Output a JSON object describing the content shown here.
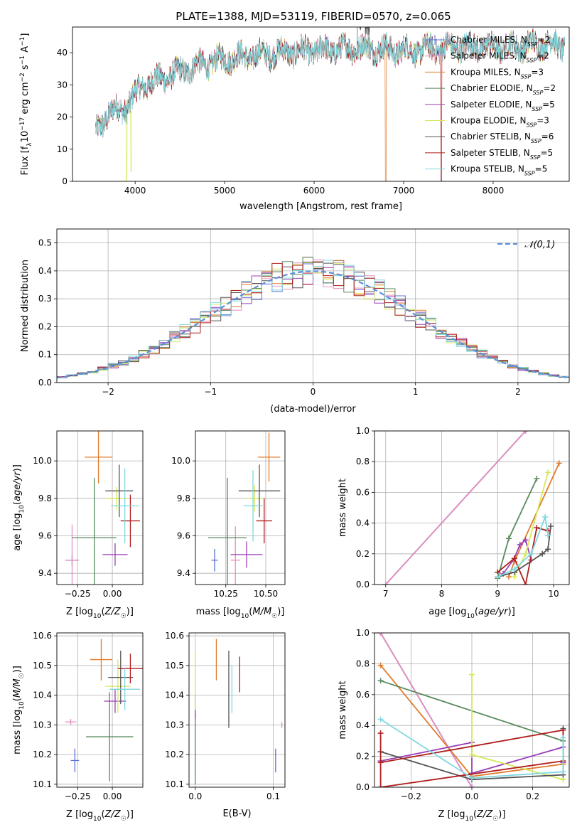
{
  "figure": {
    "title": "PLATE=1388, MJD=53119, FIBERID=0570, z=0.065"
  },
  "chart_data": [
    {
      "id": "spectrum",
      "type": "line",
      "title": "PLATE=1388, MJD=53119, FIBERID=0570, z=0.065",
      "xlabel": "wavelength [Angstrom, rest frame]",
      "ylabel": "Flux [f_λ 10^-17 erg cm^-2 s^-1 A^-1]",
      "xlim": [
        3300,
        8850
      ],
      "ylim": [
        0,
        48
      ],
      "xticks": [
        4000,
        5000,
        6000,
        7000,
        8000
      ],
      "yticks": [
        0,
        10,
        20,
        30,
        40
      ],
      "grid": false,
      "legend": "top-right",
      "continuum": {
        "x": [
          3550,
          3700,
          3900,
          4000,
          4100,
          4300,
          4500,
          4700,
          5000,
          5300,
          5600,
          5900,
          6200,
          6500,
          6800,
          7100,
          7400,
          7700,
          8000,
          8300,
          8600,
          8800
        ],
        "y": [
          15,
          21,
          23,
          27,
          30,
          32,
          34,
          36,
          38,
          39,
          40,
          40.5,
          41,
          41.5,
          41,
          40.5,
          41.5,
          42,
          41.5,
          42,
          43,
          42
        ]
      },
      "series": [
        {
          "name": "Chabrier MILES, N_SSP=2",
          "color": "#5b6fd6"
        },
        {
          "name": "Salpeter MILES, N_SSP=2",
          "color": "#e48fbd"
        },
        {
          "name": "Kroupa MILES, N_SSP=3",
          "color": "#e07b2a"
        },
        {
          "name": "Chabrier ELODIE, N_SSP=2",
          "color": "#5a8a5e"
        },
        {
          "name": "Salpeter ELODIE, N_SSP=5",
          "color": "#9a3fb8"
        },
        {
          "name": "Kroupa ELODIE, N_SSP=3",
          "color": "#d6e85a"
        },
        {
          "name": "Chabrier STELIB, N_SSP=6",
          "color": "#555555"
        },
        {
          "name": "Salpeter STELIB, N_SSP=5",
          "color": "#b01e1e"
        },
        {
          "name": "Kroupa STELIB, N_SSP=5",
          "color": "#7fd8df"
        }
      ]
    },
    {
      "id": "residuals",
      "type": "histogram",
      "xlabel": "(data-model)/error",
      "ylabel": "Normed distribution",
      "xlim": [
        -2.5,
        2.5
      ],
      "ylim": [
        0,
        0.55
      ],
      "xticks": [
        -2,
        -1,
        0,
        1,
        2
      ],
      "yticks": [
        0.0,
        0.1,
        0.2,
        0.3,
        0.4,
        0.5
      ],
      "grid": true,
      "legend": "top-right",
      "reference": {
        "name": "𝒩(0,1)",
        "color": "#5b8fd8"
      }
    },
    {
      "id": "age-vs-Z",
      "type": "scatter",
      "xlabel": "Z [log10(Z/Z☉)]",
      "ylabel": "age [log10(age/yr)]",
      "xlim": [
        -0.4,
        0.22
      ],
      "ylim": [
        9.34,
        10.16
      ],
      "xticks": [
        -0.25,
        0.0
      ],
      "yticks": [
        9.4,
        9.6,
        9.8,
        10.0
      ],
      "grid": true,
      "points": [
        {
          "x": -0.29,
          "y": 9.47,
          "xerr": 0.04,
          "yerr": 0.03,
          "color": "#5b6fd6"
        },
        {
          "x": -0.29,
          "y": 9.47,
          "xerr": 0.05,
          "yerr": 0.19,
          "color": "#e48fbd"
        },
        {
          "x": -0.1,
          "y": 10.02,
          "xerr": 0.1,
          "yerr": 0.14,
          "color": "#e07b2a"
        },
        {
          "x": -0.13,
          "y": 9.59,
          "xerr": 0.16,
          "yerr": 0.32,
          "color": "#5a8a5e"
        },
        {
          "x": 0.02,
          "y": 9.5,
          "xerr": 0.09,
          "yerr": 0.06,
          "color": "#9a3fb8"
        },
        {
          "x": 0.03,
          "y": 9.8,
          "xerr": 0.08,
          "yerr": 0.06,
          "color": "#d6e85a"
        },
        {
          "x": 0.05,
          "y": 9.84,
          "xerr": 0.1,
          "yerr": 0.14,
          "color": "#555555"
        },
        {
          "x": 0.13,
          "y": 9.68,
          "xerr": 0.07,
          "yerr": 0.14,
          "color": "#b01e1e"
        },
        {
          "x": 0.09,
          "y": 9.76,
          "xerr": 0.1,
          "yerr": 0.2,
          "color": "#7fd8df"
        }
      ]
    },
    {
      "id": "age-vs-mass",
      "type": "scatter",
      "xlabel": "mass [log10(M/M☉)]",
      "ylabel": "",
      "xlim": [
        10.06,
        10.62
      ],
      "ylim": [
        9.34,
        10.16
      ],
      "xticks": [
        10.25,
        10.5
      ],
      "yticks": [
        9.4,
        9.6,
        9.8,
        10.0
      ],
      "grid": true,
      "points": [
        {
          "x": 10.18,
          "y": 9.47,
          "xerr": 0.02,
          "yerr": 0.06,
          "color": "#5b6fd6"
        },
        {
          "x": 10.31,
          "y": 9.47,
          "xerr": 0.03,
          "yerr": 0.18,
          "color": "#e48fbd"
        },
        {
          "x": 10.52,
          "y": 10.02,
          "xerr": 0.07,
          "yerr": 0.13,
          "color": "#e07b2a"
        },
        {
          "x": 10.26,
          "y": 9.59,
          "xerr": 0.12,
          "yerr": 0.32,
          "color": "#5a8a5e"
        },
        {
          "x": 10.38,
          "y": 9.5,
          "xerr": 0.1,
          "yerr": 0.07,
          "color": "#9a3fb8"
        },
        {
          "x": 10.43,
          "y": 9.8,
          "xerr": 0.05,
          "yerr": 0.07,
          "color": "#d6e85a"
        },
        {
          "x": 10.46,
          "y": 9.84,
          "xerr": 0.13,
          "yerr": 0.14,
          "color": "#555555"
        },
        {
          "x": 10.49,
          "y": 9.68,
          "xerr": 0.05,
          "yerr": 0.12,
          "color": "#b01e1e"
        },
        {
          "x": 10.42,
          "y": 9.76,
          "xerr": 0.06,
          "yerr": 0.19,
          "color": "#7fd8df"
        }
      ]
    },
    {
      "id": "weight-vs-age",
      "type": "line",
      "xlabel": "age [log10(age/yr)]",
      "ylabel": "mass weight",
      "xlim": [
        6.8,
        10.28
      ],
      "ylim": [
        0,
        1
      ],
      "xticks": [
        7,
        8,
        9,
        10
      ],
      "yticks": [
        0.0,
        0.2,
        0.4,
        0.6,
        0.8,
        1.0
      ],
      "grid": true,
      "series": [
        {
          "color": "#5b6fd6",
          "x": [
            7.0,
            9.5
          ],
          "y": [
            0.0,
            1.0
          ]
        },
        {
          "color": "#e48fbd",
          "x": [
            7.0,
            9.5
          ],
          "y": [
            0.0,
            1.0
          ]
        },
        {
          "color": "#e07b2a",
          "x": [
            9.2,
            9.3,
            10.1
          ],
          "y": [
            0.05,
            0.15,
            0.79
          ]
        },
        {
          "color": "#5a8a5e",
          "x": [
            9.0,
            9.2,
            9.7
          ],
          "y": [
            0.04,
            0.3,
            0.69
          ]
        },
        {
          "color": "#9a3fb8",
          "x": [
            9.1,
            9.3,
            9.4,
            9.5,
            9.6
          ],
          "y": [
            0.07,
            0.17,
            0.26,
            0.29,
            0.16
          ]
        },
        {
          "color": "#d6e85a",
          "x": [
            9.3,
            9.5,
            9.9
          ],
          "y": [
            0.05,
            0.2,
            0.73
          ]
        },
        {
          "color": "#555555",
          "x": [
            9.0,
            9.3,
            9.8,
            9.9,
            9.95
          ],
          "y": [
            0.05,
            0.08,
            0.2,
            0.23,
            0.38
          ]
        },
        {
          "color": "#b01e1e",
          "x": [
            9.0,
            9.3,
            9.5,
            9.7,
            9.9
          ],
          "y": [
            0.08,
            0.17,
            0.0,
            0.37,
            0.35
          ]
        },
        {
          "color": "#7fd8df",
          "x": [
            9.0,
            9.3,
            9.6,
            9.85,
            9.9
          ],
          "y": [
            0.05,
            0.1,
            0.2,
            0.44,
            0.32
          ]
        }
      ]
    },
    {
      "id": "mass-vs-Z",
      "type": "scatter",
      "xlabel": "Z [log10(Z/Z☉)]",
      "ylabel": "mass [log10(M/M☉)]",
      "xlim": [
        -0.4,
        0.22
      ],
      "ylim": [
        10.09,
        10.61
      ],
      "xticks": [
        -0.25,
        0.0
      ],
      "yticks": [
        10.1,
        10.2,
        10.3,
        10.4,
        10.5,
        10.6
      ],
      "grid": true,
      "points": [
        {
          "x": -0.27,
          "y": 10.18,
          "xerr": 0.03,
          "yerr": 0.04,
          "color": "#5b6fd6"
        },
        {
          "x": -0.3,
          "y": 10.31,
          "xerr": 0.04,
          "yerr": 0.01,
          "color": "#e48fbd"
        },
        {
          "x": -0.08,
          "y": 10.52,
          "xerr": 0.08,
          "yerr": 0.07,
          "color": "#e07b2a"
        },
        {
          "x": -0.02,
          "y": 10.26,
          "xerr": 0.17,
          "yerr": 0.15,
          "color": "#5a8a5e"
        },
        {
          "x": 0.02,
          "y": 10.38,
          "xerr": 0.08,
          "yerr": 0.04,
          "color": "#9a3fb8"
        },
        {
          "x": 0.04,
          "y": 10.43,
          "xerr": 0.09,
          "yerr": 0.09,
          "color": "#d6e85a"
        },
        {
          "x": 0.06,
          "y": 10.46,
          "xerr": 0.09,
          "yerr": 0.09,
          "color": "#555555"
        },
        {
          "x": 0.13,
          "y": 10.49,
          "xerr": 0.09,
          "yerr": 0.05,
          "color": "#b01e1e"
        },
        {
          "x": 0.09,
          "y": 10.42,
          "xerr": 0.11,
          "yerr": 0.07,
          "color": "#7fd8df"
        }
      ]
    },
    {
      "id": "mass-vs-ebv",
      "type": "scatter",
      "xlabel": "E(B-V)",
      "ylabel": "",
      "xlim": [
        -0.008,
        0.115
      ],
      "ylim": [
        10.09,
        10.61
      ],
      "xticks": [
        0.0,
        0.1
      ],
      "yticks": [
        10.1,
        10.2,
        10.3,
        10.4,
        10.5,
        10.6
      ],
      "grid": true,
      "points": [
        {
          "x": 0.103,
          "y": 10.18,
          "xerr": 0,
          "yerr": 0.04,
          "color": "#5b6fd6"
        },
        {
          "x": 0.111,
          "y": 10.3,
          "xerr": 0,
          "yerr": 0.01,
          "color": "#e48fbd"
        },
        {
          "x": 0.027,
          "y": 10.52,
          "xerr": 0,
          "yerr": 0.07,
          "color": "#e07b2a"
        },
        {
          "x": 0.0,
          "y": 10.25,
          "xerr": 0,
          "yerr": 0.15,
          "color": "#5a8a5e"
        },
        {
          "x": 0.0,
          "y": 10.36,
          "xerr": 0,
          "yerr": 0.04,
          "color": "#9a3fb8"
        },
        {
          "x": 0.0,
          "y": 10.45,
          "xerr": 0,
          "yerr": 0.1,
          "color": "#d6e85a"
        },
        {
          "x": 0.043,
          "y": 10.42,
          "xerr": 0,
          "yerr": 0.13,
          "color": "#555555"
        },
        {
          "x": 0.057,
          "y": 10.47,
          "xerr": 0,
          "yerr": 0.06,
          "color": "#b01e1e"
        },
        {
          "x": 0.047,
          "y": 10.42,
          "xerr": 0,
          "yerr": 0.08,
          "color": "#7fd8df"
        }
      ]
    },
    {
      "id": "weight-vs-Z",
      "type": "line",
      "xlabel": "Z [log10(Z/Z☉)]",
      "ylabel": "mass weight",
      "xlim": [
        -0.32,
        0.32
      ],
      "ylim": [
        0,
        1
      ],
      "xticks": [
        -0.2,
        0.0,
        0.2
      ],
      "yticks": [
        0.0,
        0.2,
        0.4,
        0.6,
        0.8,
        1.0
      ],
      "grid": true,
      "series": [
        {
          "color": "#5b6fd6",
          "x": [
            -0.3,
            0.0
          ],
          "y": [
            1.0,
            0.0
          ]
        },
        {
          "color": "#e48fbd",
          "x": [
            -0.3,
            0.0
          ],
          "y": [
            1.0,
            0.0
          ]
        },
        {
          "color": "#e07b2a",
          "x": [
            -0.3,
            0.0,
            0.3
          ],
          "y": [
            0.79,
            0.07,
            0.15
          ]
        },
        {
          "color": "#5a8a5e",
          "x": [
            -0.3,
            0.3
          ],
          "y": [
            0.69,
            0.3
          ]
        },
        {
          "color": "#9a3fb8",
          "x": [
            -0.3,
            0.0,
            0.0,
            0.3,
            0.3
          ],
          "y": [
            0.17,
            0.29,
            0.09,
            0.26,
            0.16
          ]
        },
        {
          "color": "#d6e85a",
          "x": [
            0.0,
            0.0,
            0.3,
            0.3
          ],
          "y": [
            0.73,
            0.21,
            0.05,
            0.05
          ]
        },
        {
          "color": "#555555",
          "x": [
            -0.3,
            0.0,
            0.3,
            0.3
          ],
          "y": [
            0.23,
            0.05,
            0.08,
            0.38
          ]
        },
        {
          "color": "#b01e1e",
          "x": [
            -0.3,
            -0.3,
            0.3,
            0.3,
            -0.3
          ],
          "y": [
            0.35,
            0.0,
            0.17,
            0.37,
            0.16
          ]
        },
        {
          "color": "#7fd8df",
          "x": [
            -0.3,
            0.0,
            0.3,
            0.3
          ],
          "y": [
            0.44,
            0.06,
            0.1,
            0.32
          ]
        }
      ]
    }
  ]
}
